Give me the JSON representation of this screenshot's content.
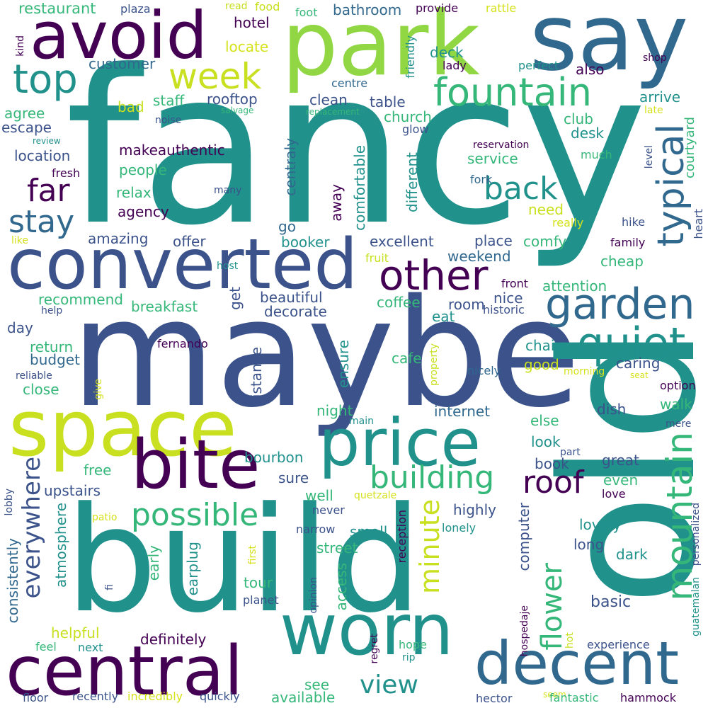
{
  "palette": {
    "dark_purple": "#440154",
    "indigo": "#3b528b",
    "navy_blue": "#31688e",
    "teal": "#21918c",
    "green": "#35b779",
    "lime": "#90d743",
    "yellow": "#c8e020",
    "light_yellow": "#d5e21a"
  },
  "words": [
    "fancy",
    "maybe",
    "build",
    "old",
    "say",
    "park",
    "space",
    "converted",
    "worn",
    "central",
    "decent",
    "avoid",
    "price",
    "bite",
    "fountain",
    "garden",
    "quiet",
    "other",
    "typical",
    "mountain",
    "top",
    "week",
    "building",
    "possible",
    "roof",
    "back",
    "stay",
    "far",
    "everywhere",
    "minute",
    "flower",
    "view",
    "restaurant",
    "plaza",
    "read",
    "food",
    "foot",
    "bathroom",
    "provide",
    "rattle",
    "kind",
    "shop",
    "hotel",
    "locate",
    "deck",
    "customer",
    "lady",
    "perfect",
    "also",
    "friendly",
    "arrive",
    "rooftop",
    "clean",
    "table",
    "centre",
    "agree",
    "bad",
    "staff",
    "salvage",
    "replacement",
    "noise",
    "church",
    "late",
    "escape",
    "review",
    "glow",
    "club",
    "courtyard",
    "desk",
    "location",
    "makeauthentic",
    "reservation",
    "service",
    "much",
    "people",
    "fresh",
    "fork",
    "level",
    "relax",
    "many",
    "need",
    "agency",
    "really",
    "hike",
    "heart",
    "family",
    "offer",
    "amazing",
    "booker",
    "excellent",
    "place",
    "comfy",
    "weekend",
    "cheap",
    "like",
    "fruit",
    "host",
    "front",
    "attention",
    "recommend",
    "beautiful",
    "nice",
    "breakfast",
    "coffee",
    "room",
    "help",
    "decorate",
    "historic",
    "eat",
    "day",
    "return",
    "fernando",
    "chair",
    "budget",
    "cafe",
    "good",
    "caring",
    "reliable",
    "nicely",
    "morning",
    "seat",
    "close",
    "option",
    "ensure",
    "night",
    "internet",
    "dish",
    "else",
    "walk",
    "give",
    "main",
    "manage",
    "mere",
    "look",
    "part",
    "distance",
    "bourbon",
    "free",
    "book",
    "great",
    "even",
    "love",
    "upstairs",
    "sure",
    "well",
    "highly",
    "lovely",
    "quetzale",
    "small",
    "long",
    "lonely",
    "lobby",
    "patio",
    "never",
    "narrow",
    "street",
    "dark",
    "early",
    "atmosphere",
    "tour",
    "computer",
    "earplug",
    "access",
    "reception",
    "first",
    "basic",
    "consistently",
    "fi",
    "planet",
    "opinion",
    "personalized",
    "guatemalan",
    "helpful",
    "hospedaje",
    "definitely",
    "hot",
    "experience",
    "hope",
    "feel",
    "next",
    "regret",
    "rip",
    "see",
    "available",
    "floor",
    "recently",
    "incredibly",
    "quickly",
    "hector",
    "seem",
    "fantastic",
    "hammock",
    "away",
    "comfortable",
    "different",
    "centraly",
    "go",
    "get",
    "property"
  ]
}
